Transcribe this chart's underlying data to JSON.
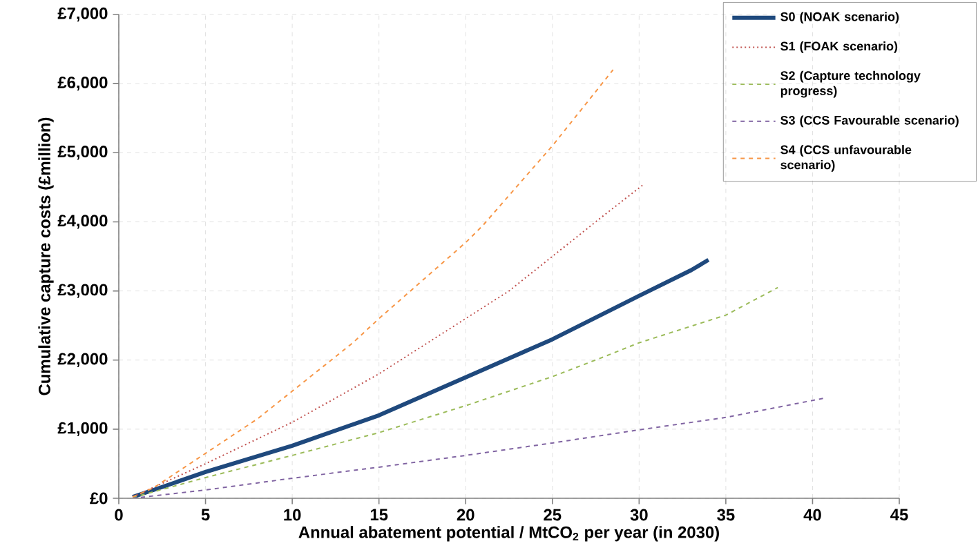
{
  "chart_data": {
    "type": "line",
    "xlabel": "Annual abatement potential / MtCO$_{2}$ per year (in 2030)",
    "ylabel": "Cumulative capture costs (£million)",
    "xlim": [
      0,
      45
    ],
    "xticks": [
      0,
      5,
      10,
      15,
      20,
      25,
      30,
      35,
      40,
      45
    ],
    "ylim": [
      0,
      7000
    ],
    "yticks": [
      {
        "value": 0,
        "label": "£0"
      },
      {
        "value": 1000,
        "label": "£1,000"
      },
      {
        "value": 2000,
        "label": "£2,000"
      },
      {
        "value": 3000,
        "label": "£3,000"
      },
      {
        "value": 4000,
        "label": "£4,000"
      },
      {
        "value": 5000,
        "label": "£5,000"
      },
      {
        "value": 6000,
        "label": "£6,000"
      },
      {
        "value": 7000,
        "label": "£7,000"
      }
    ],
    "grid": true,
    "legend": "top right",
    "series": [
      {
        "name": "S0 (NOAK scenario)",
        "color": "#1f497d",
        "line_style": "solid",
        "x": [
          0.8,
          2,
          5,
          10,
          15,
          20,
          25,
          30,
          33,
          34
        ],
        "values": [
          20,
          120,
          380,
          760,
          1200,
          1750,
          2300,
          2930,
          3300,
          3450
        ]
      },
      {
        "name": "S1 (FOAK scenario)",
        "color": "#c0504d",
        "line_style": "dotted",
        "x": [
          0.8,
          5,
          10,
          15,
          20,
          22.5,
          25,
          28,
          30.2
        ],
        "values": [
          20,
          500,
          1100,
          1800,
          2600,
          3000,
          3500,
          4100,
          4530
        ]
      },
      {
        "name": "S2 (Capture technology progress)",
        "color": "#9bbb59",
        "line_style": "dashed",
        "x": [
          0.8,
          5,
          10,
          15,
          20,
          25,
          28,
          30,
          35,
          38
        ],
        "values": [
          10,
          300,
          620,
          950,
          1340,
          1760,
          2050,
          2250,
          2650,
          3050
        ]
      },
      {
        "name": "S3 (CCS Favourable scenario)",
        "color": "#8064a2",
        "line_style": "dashed",
        "x": [
          0.8,
          5,
          10,
          15,
          20,
          25,
          30,
          35,
          40.7
        ],
        "values": [
          0,
          120,
          290,
          450,
          620,
          800,
          990,
          1170,
          1450
        ]
      },
      {
        "name": "S4 (CCS unfavourable scenario)",
        "color": "#f79646",
        "line_style": "dashed",
        "x": [
          0.8,
          2,
          5,
          8,
          10,
          13.5,
          15,
          20,
          21,
          25,
          28.5
        ],
        "values": [
          20,
          150,
          650,
          1150,
          1550,
          2250,
          2600,
          3700,
          3950,
          5100,
          6200
        ]
      }
    ]
  }
}
